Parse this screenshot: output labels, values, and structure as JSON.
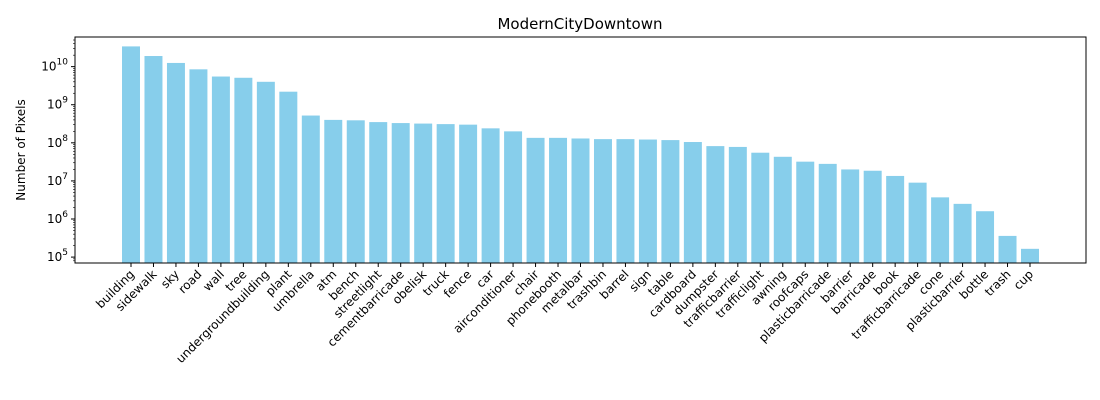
{
  "chart_data": {
    "type": "bar",
    "title": "ModernCityDowntown",
    "xlabel": "",
    "ylabel": "Number of Pixels",
    "yscale": "log",
    "ylim": [
      70000,
      60000000000
    ],
    "ytick_values": [
      100000,
      1000000,
      10000000,
      100000000,
      1000000000,
      10000000000
    ],
    "ytick_exponents": [
      "5",
      "6",
      "7",
      "8",
      "9",
      "10"
    ],
    "ytick_base": "10",
    "bar_color": "#87ceeb",
    "categories": [
      "building",
      "sidewalk",
      "sky",
      "road",
      "wall",
      "tree",
      "undergroundbuilding",
      "plant",
      "umbrella",
      "atm",
      "bench",
      "streetlight",
      "cementbarricade",
      "obelisk",
      "truck",
      "fence",
      "car",
      "airconditioner",
      "chair",
      "phonebooth",
      "metalbar",
      "trashbin",
      "barrel",
      "sign",
      "table",
      "cardboard",
      "dumpster",
      "trafficbarrier",
      "trafficlight",
      "awning",
      "roofcaps",
      "plasticbarricade",
      "barrier",
      "barricade",
      "book",
      "trafficbarricade",
      "cone",
      "plasticbarrier",
      "bottle",
      "trash",
      "cup"
    ],
    "values": [
      34000000000,
      19000000000,
      12500000000,
      8500000000,
      5500000000,
      5100000000,
      4000000000,
      2200000000,
      520000000,
      400000000,
      390000000,
      350000000,
      330000000,
      320000000,
      310000000,
      300000000,
      240000000,
      200000000,
      135000000,
      135000000,
      130000000,
      125000000,
      125000000,
      122000000,
      118000000,
      105000000,
      82000000,
      78000000,
      55000000,
      43000000,
      32000000,
      28000000,
      20000000,
      18500000,
      13500000,
      9000000,
      3700000,
      2500000,
      1600000,
      360000,
      165000
    ]
  }
}
